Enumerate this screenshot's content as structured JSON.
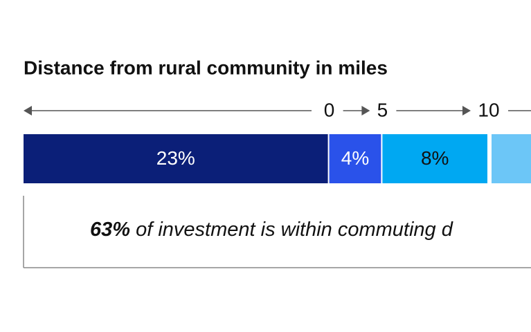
{
  "chart_data": {
    "type": "stacked-bar",
    "title": "Distance from rural community in miles",
    "distance_ticks": [
      0,
      5,
      10
    ],
    "series": [
      {
        "color": "#0b1f78",
        "values": [
          23
        ],
        "value_labels": [
          "23%"
        ]
      },
      {
        "color": "#2a52ea",
        "values": [
          4
        ],
        "value_labels": [
          "4%"
        ]
      },
      {
        "color": "#00a8f2",
        "values": [
          8
        ],
        "value_labels": [
          "8%"
        ]
      }
    ],
    "annotation": {
      "bold": "63%",
      "text": "of investment is within commuting d"
    }
  }
}
